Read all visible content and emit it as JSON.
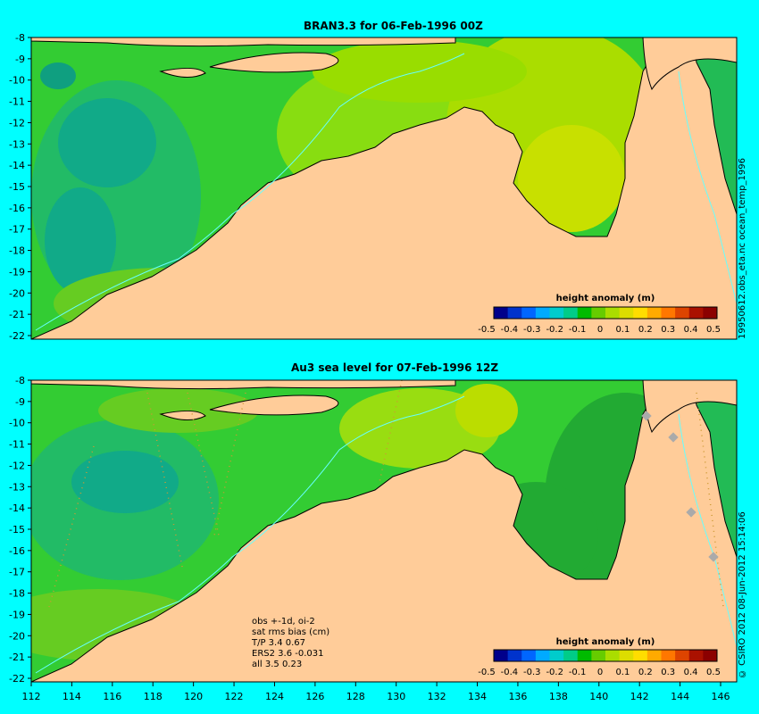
{
  "panels": [
    {
      "title": "BRAN3.3 for 06-Feb-1996 00Z",
      "side_label": "19950612.obs_eta.nc    ocean_temp_1996",
      "colorbar_title": "height anomaly (m)"
    },
    {
      "title": "Au3 sea level  for 07-Feb-1996 12Z",
      "side_label": "© CSIRO 2012  08-Jun-2012 15:14:06",
      "colorbar_title": "height anomaly (m)",
      "stats": [
        "obs +-1d, oi-2",
        "sat rms bias (cm)",
        "T/P  3.4 0.67",
        "ERS2 3.6 -0.031",
        "all 3.5 0.23"
      ]
    }
  ],
  "lon_ticks": [
    "112",
    "114",
    "116",
    "118",
    "120",
    "122",
    "124",
    "126",
    "128",
    "130",
    "132",
    "134",
    "136",
    "138",
    "140",
    "142",
    "144",
    "146"
  ],
  "lat_ticks": [
    "-8",
    "-9",
    "-10",
    "-11",
    "-12",
    "-13",
    "-14",
    "-15",
    "-16",
    "-17",
    "-18",
    "-19",
    "-20",
    "-21",
    "-22"
  ],
  "colorbar_ticks": [
    "-0.5",
    "-0.4",
    "-0.3",
    "-0.2",
    "-0.1",
    "0",
    "0.1",
    "0.2",
    "0.3",
    "0.4",
    "0.5"
  ],
  "colorbar_colors": [
    "#00008b",
    "#0033cc",
    "#0066ff",
    "#00aaff",
    "#00cccc",
    "#00cc88",
    "#00bb00",
    "#66cc00",
    "#aadd00",
    "#dddd00",
    "#ffdd00",
    "#ffaa00",
    "#ff7700",
    "#dd4400",
    "#aa1100",
    "#8b0000"
  ],
  "colors": {
    "background": "#00ffff",
    "land": "#ffcc99",
    "ocean_base": "#33cc33"
  }
}
